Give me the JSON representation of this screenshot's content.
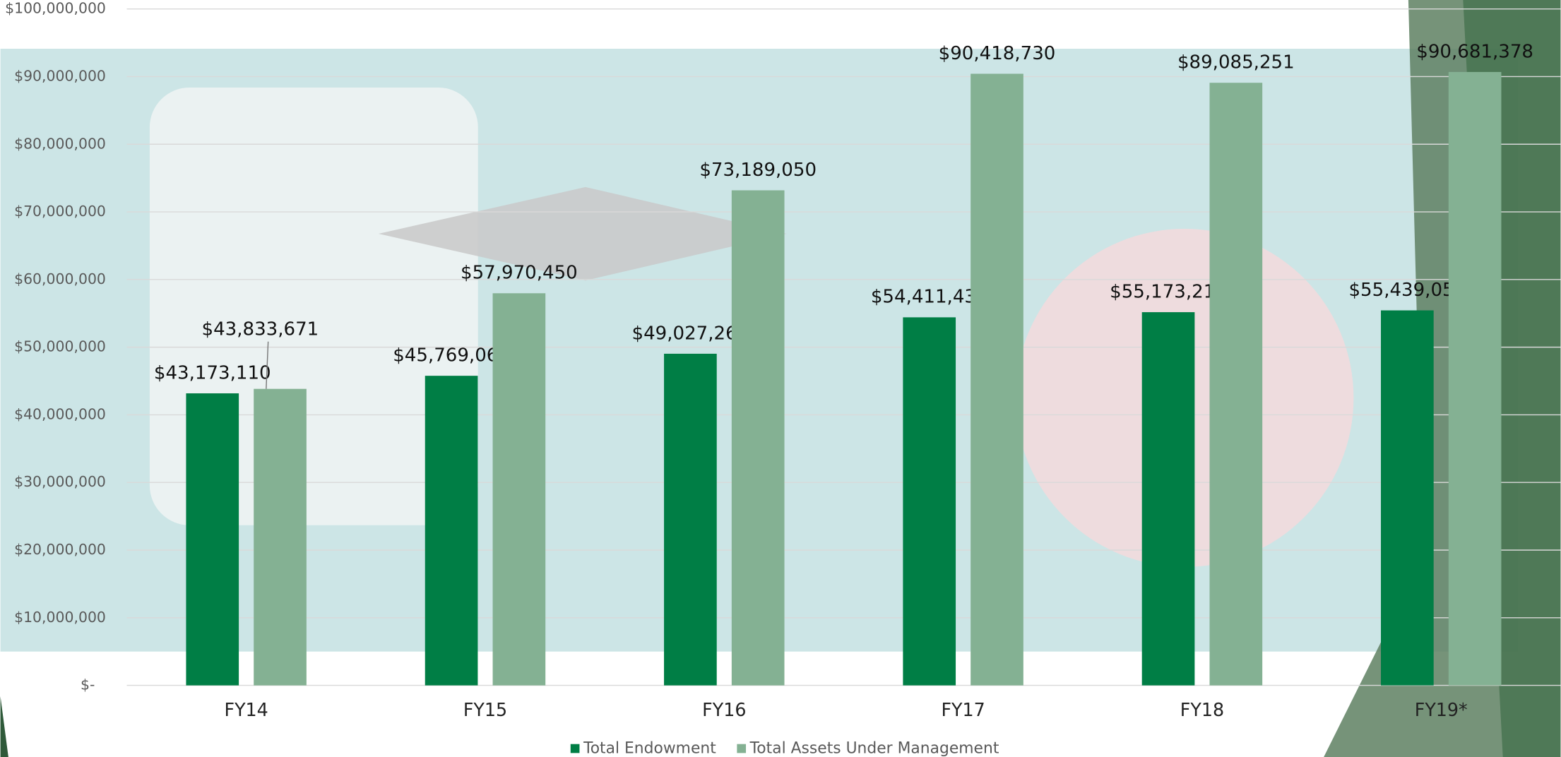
{
  "chart_data": {
    "type": "bar",
    "categories": [
      "FY14",
      "FY15",
      "FY16",
      "FY17",
      "FY18",
      "FY19*"
    ],
    "series": [
      {
        "name": "Total Endowment",
        "color": "#007e45",
        "values": [
          43173110,
          45769063,
          49027269,
          54411430,
          55173219,
          55439057
        ],
        "value_labels": [
          "$43,173,110",
          "$45,769,063",
          "$49,027,269",
          "$54,411,430",
          "$55,173,219",
          "$55,439,057"
        ]
      },
      {
        "name": "Total Assets Under Management",
        "color": "#84b193",
        "values": [
          43833671,
          57970450,
          73189050,
          90418730,
          89085251,
          90681378
        ],
        "value_labels": [
          "$43,833,671",
          "$57,970,450",
          "$73,189,050",
          "$90,418,730",
          "$89,085,251",
          "$90,681,378"
        ]
      }
    ],
    "ylim": [
      0,
      100000000
    ],
    "yticks": [
      {
        "value": 0,
        "label": "$-"
      },
      {
        "value": 10000000,
        "label": "$10,000,000"
      },
      {
        "value": 20000000,
        "label": "$20,000,000"
      },
      {
        "value": 30000000,
        "label": "$30,000,000"
      },
      {
        "value": 40000000,
        "label": "$40,000,000"
      },
      {
        "value": 50000000,
        "label": "$50,000,000"
      },
      {
        "value": 60000000,
        "label": "$60,000,000"
      },
      {
        "value": 70000000,
        "label": "$70,000,000"
      },
      {
        "value": 80000000,
        "label": "$80,000,000"
      },
      {
        "value": 90000000,
        "label": "$90,000,000"
      },
      {
        "value": 100000000,
        "label": "$100,000,000"
      }
    ],
    "grid": true,
    "legend": "bottom"
  }
}
